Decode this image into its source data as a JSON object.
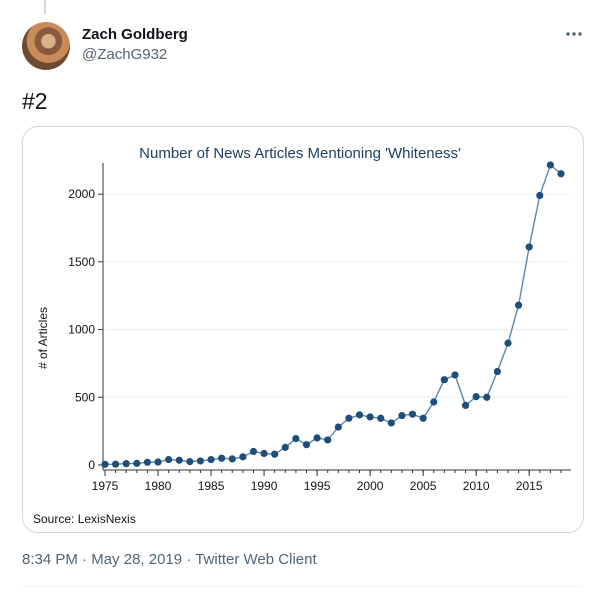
{
  "tweet": {
    "display_name": "Zach Goldberg",
    "handle": "@ZachG932",
    "text": "#2",
    "time": "8:34 PM",
    "separator": "·",
    "date": "May 28, 2019",
    "client": "Twitter Web Client",
    "more_icon": "ellipsis-icon"
  },
  "colors": {
    "text_primary": "#0f1419",
    "text_secondary": "#536471",
    "border": "#cfd9de",
    "chart_title": "#1f3f66",
    "series": "#1f4e79",
    "series_line": "#5c87ad",
    "grid": "#e9eef2"
  },
  "chart_data": {
    "type": "line",
    "title": "Number of News Articles Mentioning 'Whiteness'",
    "xlabel": "",
    "ylabel": "# of Articles",
    "source_note": "Source: LexisNexis",
    "xlim": [
      1975,
      2018
    ],
    "ylim": [
      0,
      2200
    ],
    "x_ticks": [
      1975,
      1980,
      1985,
      1990,
      1995,
      2000,
      2005,
      2010,
      2015
    ],
    "y_ticks": [
      0,
      500,
      1000,
      1500,
      2000
    ],
    "grid": true,
    "legend": "none",
    "x": [
      1975,
      1976,
      1977,
      1978,
      1979,
      1980,
      1981,
      1982,
      1983,
      1984,
      1985,
      1986,
      1987,
      1988,
      1989,
      1990,
      1991,
      1992,
      1993,
      1994,
      1995,
      1996,
      1997,
      1998,
      1999,
      2000,
      2001,
      2002,
      2003,
      2004,
      2005,
      2006,
      2007,
      2008,
      2009,
      2010,
      2011,
      2012,
      2013,
      2014,
      2015,
      2016,
      2017,
      2018
    ],
    "y": [
      5,
      6,
      10,
      12,
      20,
      22,
      40,
      35,
      25,
      30,
      40,
      50,
      45,
      60,
      100,
      85,
      80,
      130,
      195,
      150,
      200,
      185,
      280,
      345,
      370,
      355,
      345,
      310,
      365,
      375,
      345,
      465,
      630,
      665,
      440,
      505,
      500,
      690,
      900,
      1180,
      1610,
      1990,
      2215,
      2150
    ]
  }
}
